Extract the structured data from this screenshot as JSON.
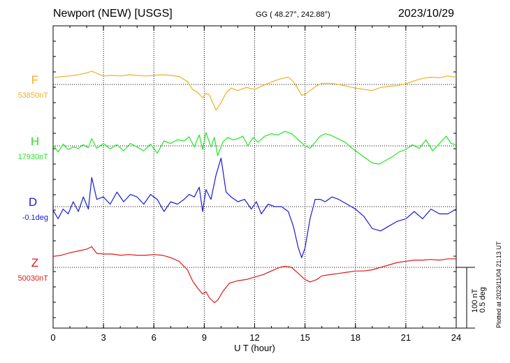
{
  "header": {
    "station": "Newport (NEW)  [USGS]",
    "coords": "GG ( 48.27°, 242.88°)",
    "date": "2023/10/29"
  },
  "plotted_note": "Plotted at 2023/11/04 21:13 UT",
  "scale_bar": {
    "line1": "100 nT",
    "line2": "0.5 deg"
  },
  "colors": {
    "F": "#f0b020",
    "H": "#22e622",
    "D": "#1a1ad6",
    "Z": "#e01818",
    "axis": "#000000",
    "grid": "#000000"
  },
  "chart_data": {
    "type": "line",
    "xlabel": "U T (hour)",
    "xlim": [
      0,
      24
    ],
    "xticks": [
      "0",
      "3",
      "6",
      "9",
      "12",
      "15",
      "18",
      "21",
      "24"
    ],
    "grid": "dotted vertical lines every 3 hours, dotted baseline per series",
    "unit_scale": "100 nT per bar; 0.5 deg per bar (D)",
    "series": [
      {
        "name": "F",
        "baseline_label": "53850nT",
        "unit": "nT",
        "x": [
          0,
          0.5,
          1,
          1.5,
          2,
          2.3,
          2.7,
          3,
          3.5,
          4,
          4.5,
          5,
          5.5,
          6,
          6.5,
          7,
          7.5,
          8,
          8.3,
          8.6,
          8.9,
          9.1,
          9.3,
          9.5,
          9.7,
          10,
          10.3,
          10.6,
          11,
          11.5,
          12,
          12.5,
          13,
          13.5,
          14,
          14.3,
          14.6,
          14.8,
          15,
          15.3,
          15.7,
          16,
          16.5,
          17,
          17.5,
          18,
          18.5,
          19,
          19.5,
          20,
          20.5,
          21,
          21.5,
          22,
          22.5,
          23,
          23.5,
          24
        ],
        "y": [
          11,
          13,
          14,
          16,
          19,
          22,
          17,
          14,
          15,
          14,
          16,
          15,
          14,
          15,
          16,
          15,
          13,
          5,
          -8,
          -13,
          -22,
          -15,
          -17,
          -30,
          -42,
          -30,
          -14,
          -6,
          -10,
          -5,
          -8,
          -2,
          4,
          9,
          12,
          5,
          -8,
          -18,
          -16,
          -10,
          -2,
          2,
          2,
          0,
          -3,
          -6,
          -8,
          -10,
          -5,
          -3,
          -2,
          1,
          6,
          10,
          12,
          11,
          14,
          12
        ]
      },
      {
        "name": "H",
        "baseline_label": "17930nT",
        "unit": "nT",
        "x": [
          0,
          0.3,
          0.6,
          0.9,
          1.2,
          1.5,
          1.8,
          2.1,
          2.3,
          2.6,
          3,
          3.4,
          3.8,
          4.2,
          4.6,
          5,
          5.4,
          5.8,
          6.2,
          6.6,
          7,
          7.4,
          7.8,
          8.1,
          8.4,
          8.7,
          8.9,
          9.1,
          9.4,
          9.6,
          9.8,
          10.1,
          10.4,
          10.7,
          11,
          11.3,
          11.6,
          11.9,
          12.2,
          12.6,
          13,
          13.4,
          13.8,
          14.2,
          14.6,
          15,
          15.3,
          15.6,
          15.9,
          16.2,
          16.5,
          16.8,
          17.1,
          17.4,
          17.8,
          18.2,
          18.6,
          19,
          19.4,
          19.8,
          20.2,
          20.6,
          21,
          21.4,
          21.8,
          22.2,
          22.6,
          23,
          23.4,
          23.7,
          24
        ],
        "y": [
          2,
          -10,
          3,
          -6,
          -2,
          -4,
          2,
          -3,
          12,
          -4,
          4,
          -5,
          2,
          -8,
          4,
          -2,
          -8,
          3,
          -12,
          8,
          4,
          10,
          8,
          15,
          -2,
          18,
          -6,
          22,
          -2,
          14,
          -16,
          6,
          14,
          10,
          12,
          16,
          0,
          14,
          6,
          16,
          20,
          18,
          24,
          20,
          10,
          0,
          -4,
          6,
          16,
          20,
          18,
          14,
          10,
          6,
          -4,
          -12,
          -20,
          -28,
          -30,
          -24,
          -18,
          -10,
          -6,
          2,
          -4,
          10,
          -8,
          4,
          16,
          4,
          2
        ]
      },
      {
        "name": "D",
        "baseline_label": "-0.1deg",
        "unit": "deg",
        "x": [
          0,
          0.3,
          0.6,
          0.9,
          1.2,
          1.5,
          1.8,
          2.1,
          2.3,
          2.6,
          3,
          3.4,
          3.8,
          4.2,
          4.6,
          5,
          5.4,
          5.8,
          6.2,
          6.6,
          7,
          7.4,
          7.8,
          8.1,
          8.4,
          8.7,
          8.9,
          9.1,
          9.4,
          9.7,
          10,
          10.3,
          10.6,
          11,
          11.4,
          11.8,
          12.1,
          12.4,
          12.8,
          13.2,
          13.6,
          14,
          14.3,
          14.6,
          14.8,
          15,
          15.3,
          15.6,
          15.9,
          16.2,
          16.6,
          17,
          17.5,
          18,
          18.5,
          19,
          19.5,
          20,
          20.5,
          21,
          21.5,
          22,
          22.5,
          23,
          23.5,
          24
        ],
        "y": [
          -0.03,
          -0.1,
          -0.02,
          -0.06,
          0.04,
          -0.04,
          0.08,
          -0.02,
          0.24,
          0.06,
          0.08,
          0.02,
          0.12,
          0.04,
          0.1,
          0.08,
          0.02,
          0.1,
          0.06,
          -0.04,
          0.04,
          0.02,
          0.06,
          0.1,
          0.08,
          0.16,
          -0.04,
          0.14,
          0.06,
          0.26,
          0.4,
          0.12,
          0.08,
          0.04,
          0.06,
          -0.02,
          0.04,
          -0.06,
          0.02,
          0.0,
          0.0,
          -0.04,
          -0.16,
          -0.34,
          -0.42,
          -0.34,
          -0.1,
          0.06,
          0.06,
          0.04,
          0.08,
          0.06,
          0.02,
          -0.02,
          -0.08,
          -0.18,
          -0.2,
          -0.16,
          -0.12,
          -0.1,
          -0.04,
          -0.1,
          -0.02,
          -0.06,
          -0.06,
          -0.02
        ]
      },
      {
        "name": "Z",
        "baseline_label": "50030nT",
        "unit": "nT",
        "x": [
          0,
          0.5,
          1,
          1.5,
          2,
          2.3,
          2.6,
          3,
          3.5,
          4,
          4.5,
          5,
          5.5,
          6,
          6.5,
          7,
          7.5,
          8,
          8.3,
          8.6,
          8.9,
          9.1,
          9.3,
          9.6,
          9.8,
          10.1,
          10.5,
          11,
          11.5,
          12,
          12.5,
          13,
          13.5,
          13.8,
          14.2,
          14.6,
          15,
          15.3,
          15.7,
          16,
          16.5,
          17,
          17.5,
          18,
          18.5,
          19,
          19.5,
          20,
          20.5,
          21,
          21.5,
          22,
          22.5,
          23,
          23.5,
          24
        ],
        "y": [
          18,
          20,
          24,
          27,
          30,
          34,
          23,
          22,
          22,
          20,
          21,
          20,
          20,
          21,
          20,
          16,
          10,
          -4,
          -22,
          -34,
          -44,
          -40,
          -50,
          -58,
          -54,
          -40,
          -26,
          -22,
          -20,
          -16,
          -12,
          -6,
          0,
          2,
          0,
          -10,
          -20,
          -24,
          -20,
          -14,
          -12,
          -10,
          -8,
          -6,
          -6,
          -4,
          0,
          4,
          8,
          10,
          12,
          12,
          13,
          12,
          14,
          14
        ]
      }
    ]
  }
}
